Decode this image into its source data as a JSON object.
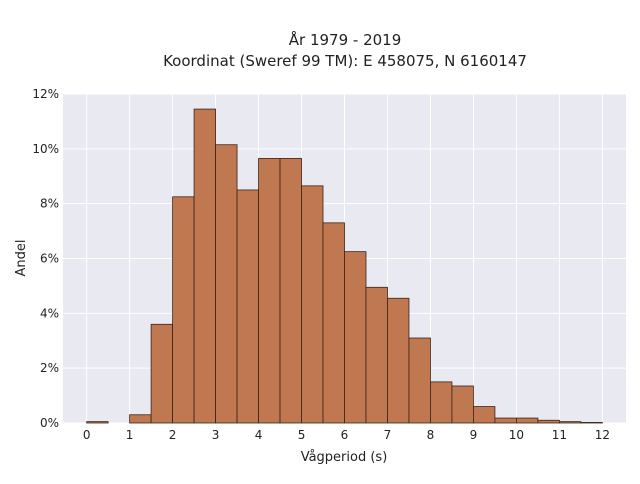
{
  "chart_data": {
    "type": "bar",
    "title": "År 1979 - 2019",
    "subtitle": "Koordinat (Sweref 99 TM): E 458075, N 6160147",
    "xlabel": "Vågperiod (s)",
    "ylabel": "Andel",
    "bin_width": 0.5,
    "bins": [
      {
        "x0": 0.0,
        "value": 0.05
      },
      {
        "x0": 0.5,
        "value": 0.0
      },
      {
        "x0": 1.0,
        "value": 0.3
      },
      {
        "x0": 1.5,
        "value": 3.6
      },
      {
        "x0": 2.0,
        "value": 8.25
      },
      {
        "x0": 2.5,
        "value": 11.45
      },
      {
        "x0": 3.0,
        "value": 10.15
      },
      {
        "x0": 3.5,
        "value": 8.5
      },
      {
        "x0": 4.0,
        "value": 9.65
      },
      {
        "x0": 4.5,
        "value": 9.65
      },
      {
        "x0": 5.0,
        "value": 8.65
      },
      {
        "x0": 5.5,
        "value": 7.3
      },
      {
        "x0": 6.0,
        "value": 6.25
      },
      {
        "x0": 6.5,
        "value": 4.95
      },
      {
        "x0": 7.0,
        "value": 4.55
      },
      {
        "x0": 7.5,
        "value": 3.1
      },
      {
        "x0": 8.0,
        "value": 1.5
      },
      {
        "x0": 8.5,
        "value": 1.35
      },
      {
        "x0": 9.0,
        "value": 0.6
      },
      {
        "x0": 9.5,
        "value": 0.18
      },
      {
        "x0": 10.0,
        "value": 0.18
      },
      {
        "x0": 10.5,
        "value": 0.1
      },
      {
        "x0": 11.0,
        "value": 0.05
      },
      {
        "x0": 11.5,
        "value": 0.02
      }
    ],
    "xlim": [
      -0.55,
      12.55
    ],
    "ylim": [
      0,
      12
    ],
    "x_ticks": [
      0,
      1,
      2,
      3,
      4,
      5,
      6,
      7,
      8,
      9,
      10,
      11,
      12
    ],
    "y_ticks": [
      {
        "value": 0,
        "label": "0%"
      },
      {
        "value": 2,
        "label": "2%"
      },
      {
        "value": 4,
        "label": "4%"
      },
      {
        "value": 6,
        "label": "6%"
      },
      {
        "value": 8,
        "label": "8%"
      },
      {
        "value": 10,
        "label": "10%"
      },
      {
        "value": 12,
        "label": "12%"
      }
    ],
    "grid": true,
    "colors": {
      "bar_fill": "#c07850",
      "bar_stroke": "#3a2418",
      "plot_background": "#e8e9f1",
      "grid": "#ffffff"
    }
  }
}
